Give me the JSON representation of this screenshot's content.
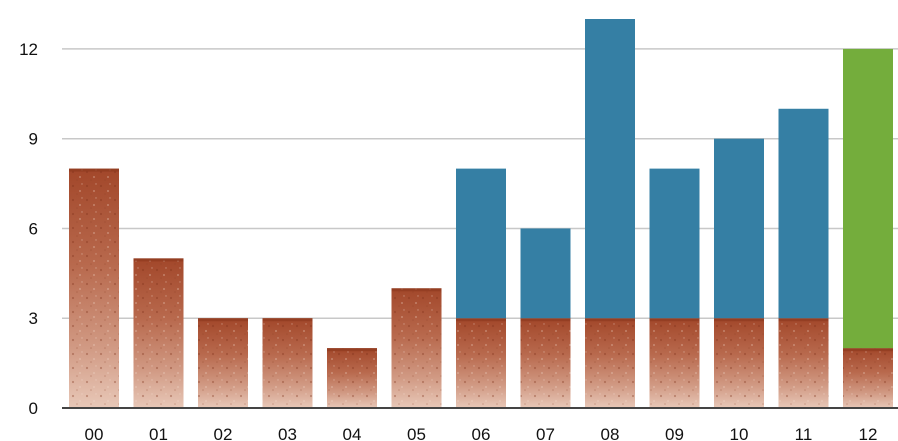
{
  "chart_data": {
    "type": "bar",
    "stacked": true,
    "categories": [
      "00",
      "01",
      "02",
      "03",
      "04",
      "05",
      "06",
      "07",
      "08",
      "09",
      "10",
      "11",
      "12"
    ],
    "series": [
      {
        "values": [
          8,
          5,
          3,
          3,
          2,
          4,
          3,
          3,
          3,
          3,
          3,
          3,
          2
        ],
        "color": "#b5674a",
        "texture": "terracotta"
      },
      {
        "values": [
          0,
          0,
          0,
          0,
          0,
          0,
          5,
          3,
          10,
          5,
          6,
          7,
          0
        ],
        "color": "#357fa4"
      },
      {
        "values": [
          0,
          0,
          0,
          0,
          0,
          0,
          0,
          0,
          0,
          0,
          0,
          0,
          10
        ],
        "color": "#74ad3c"
      }
    ],
    "yticks": [
      "0",
      "3",
      "6",
      "9",
      "12"
    ],
    "ylim": [
      0,
      13
    ],
    "grid": true,
    "title": "",
    "xlabel": "",
    "ylabel": ""
  }
}
